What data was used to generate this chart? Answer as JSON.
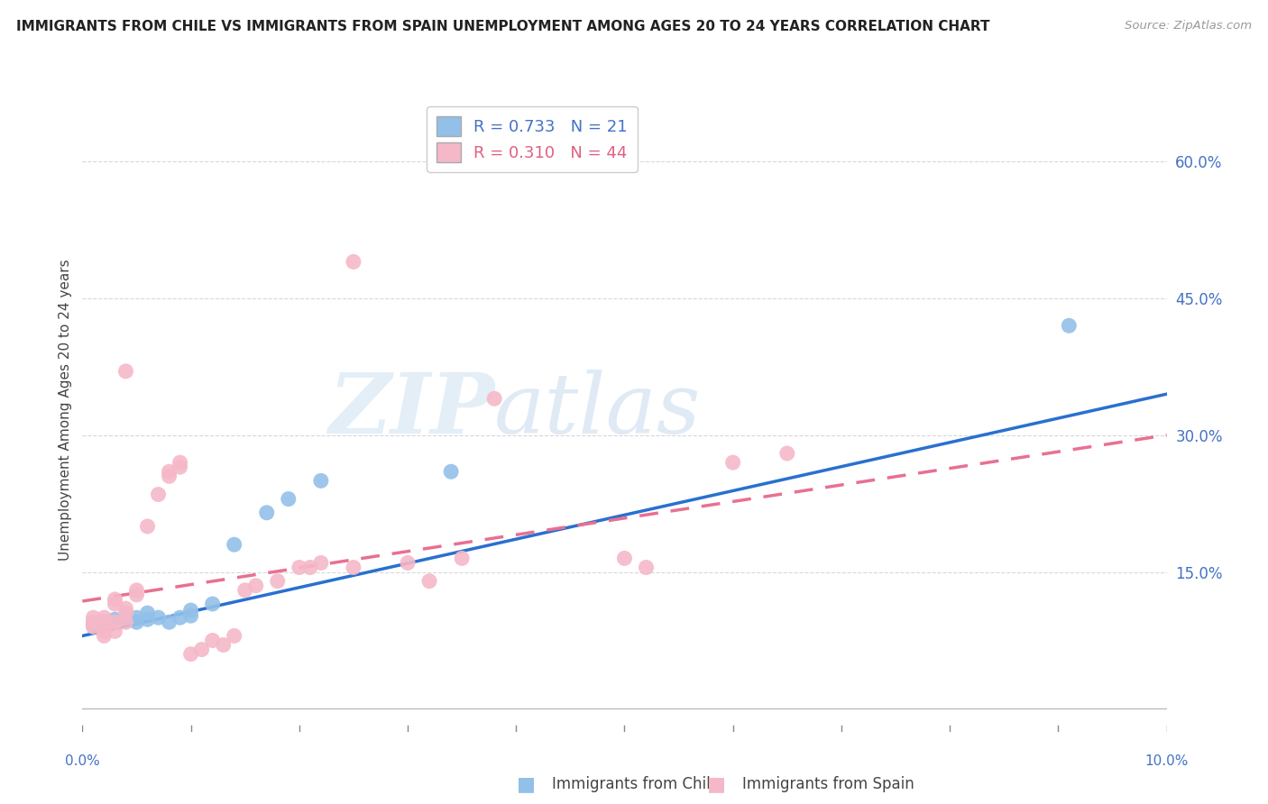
{
  "title": "IMMIGRANTS FROM CHILE VS IMMIGRANTS FROM SPAIN UNEMPLOYMENT AMONG AGES 20 TO 24 YEARS CORRELATION CHART",
  "source": "Source: ZipAtlas.com",
  "ylabel": "Unemployment Among Ages 20 to 24 years",
  "right_yticks": [
    0.0,
    0.15,
    0.3,
    0.45,
    0.6
  ],
  "right_yticklabels": [
    "",
    "15.0%",
    "30.0%",
    "45.0%",
    "60.0%"
  ],
  "xlim": [
    0.0,
    0.1
  ],
  "ylim": [
    -0.025,
    0.68
  ],
  "legend_R_chile": "0.733",
  "legend_N_chile": "21",
  "legend_R_spain": "0.310",
  "legend_N_spain": "44",
  "chile_color": "#92c0e8",
  "spain_color": "#f5b8c8",
  "trendline_chile_color": "#2970d0",
  "trendline_spain_color": "#e87090",
  "watermark_zip": "ZIP",
  "watermark_atlas": "atlas",
  "chile_points": [
    [
      0.001,
      0.092
    ],
    [
      0.002,
      0.095
    ],
    [
      0.003,
      0.098
    ],
    [
      0.004,
      0.1
    ],
    [
      0.004,
      0.102
    ],
    [
      0.005,
      0.095
    ],
    [
      0.005,
      0.1
    ],
    [
      0.006,
      0.098
    ],
    [
      0.006,
      0.105
    ],
    [
      0.007,
      0.1
    ],
    [
      0.008,
      0.095
    ],
    [
      0.009,
      0.1
    ],
    [
      0.01,
      0.102
    ],
    [
      0.01,
      0.108
    ],
    [
      0.012,
      0.115
    ],
    [
      0.014,
      0.18
    ],
    [
      0.017,
      0.215
    ],
    [
      0.019,
      0.23
    ],
    [
      0.022,
      0.25
    ],
    [
      0.034,
      0.26
    ],
    [
      0.091,
      0.42
    ]
  ],
  "spain_points": [
    [
      0.001,
      0.1
    ],
    [
      0.001,
      0.095
    ],
    [
      0.001,
      0.09
    ],
    [
      0.002,
      0.1
    ],
    [
      0.002,
      0.095
    ],
    [
      0.002,
      0.085
    ],
    [
      0.002,
      0.08
    ],
    [
      0.003,
      0.095
    ],
    [
      0.003,
      0.085
    ],
    [
      0.003,
      0.115
    ],
    [
      0.003,
      0.12
    ],
    [
      0.004,
      0.105
    ],
    [
      0.004,
      0.11
    ],
    [
      0.004,
      0.095
    ],
    [
      0.005,
      0.13
    ],
    [
      0.005,
      0.125
    ],
    [
      0.006,
      0.2
    ],
    [
      0.007,
      0.235
    ],
    [
      0.008,
      0.26
    ],
    [
      0.008,
      0.255
    ],
    [
      0.009,
      0.265
    ],
    [
      0.009,
      0.27
    ],
    [
      0.01,
      0.06
    ],
    [
      0.011,
      0.065
    ],
    [
      0.012,
      0.075
    ],
    [
      0.013,
      0.07
    ],
    [
      0.014,
      0.08
    ],
    [
      0.015,
      0.13
    ],
    [
      0.016,
      0.135
    ],
    [
      0.018,
      0.14
    ],
    [
      0.02,
      0.155
    ],
    [
      0.021,
      0.155
    ],
    [
      0.022,
      0.16
    ],
    [
      0.025,
      0.155
    ],
    [
      0.03,
      0.16
    ],
    [
      0.032,
      0.14
    ],
    [
      0.035,
      0.165
    ],
    [
      0.038,
      0.34
    ],
    [
      0.05,
      0.165
    ],
    [
      0.052,
      0.155
    ],
    [
      0.06,
      0.27
    ],
    [
      0.065,
      0.28
    ],
    [
      0.025,
      0.49
    ],
    [
      0.004,
      0.37
    ]
  ],
  "chile_trend_x": [
    0.0,
    0.1
  ],
  "chile_trend_y": [
    0.08,
    0.345
  ],
  "spain_trend_x": [
    0.0,
    0.1
  ],
  "spain_trend_y": [
    0.118,
    0.3
  ]
}
